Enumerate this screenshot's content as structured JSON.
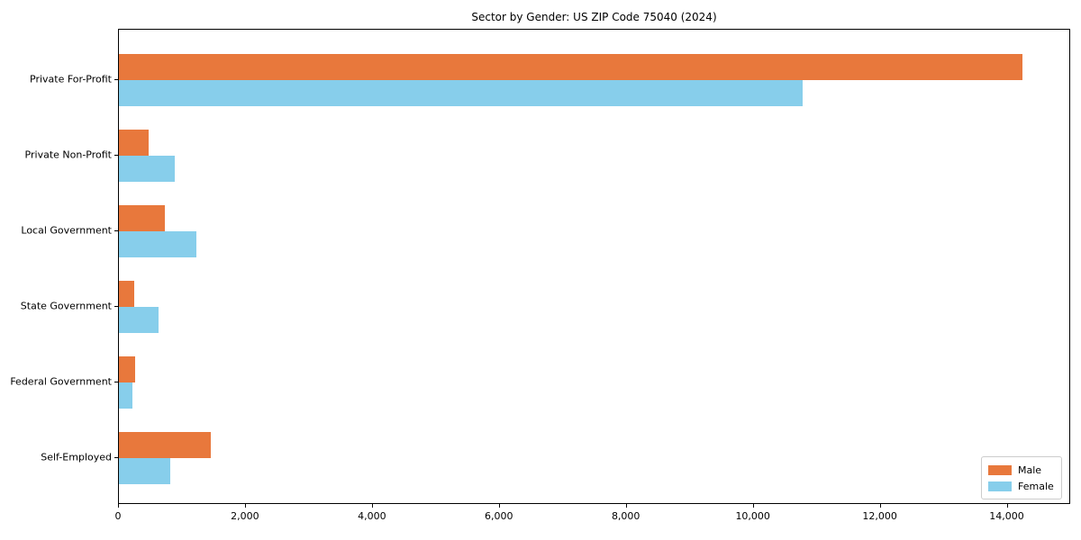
{
  "chart_data": {
    "type": "bar",
    "orientation": "horizontal",
    "title": "Sector by Gender: US ZIP Code 75040 (2024)",
    "categories": [
      "Private For-Profit",
      "Private Non-Profit",
      "Local Government",
      "State Government",
      "Federal Government",
      "Self-Employed"
    ],
    "series": [
      {
        "name": "Male",
        "color": "#e8783c",
        "values": [
          14240,
          470,
          730,
          240,
          260,
          1440
        ]
      },
      {
        "name": "Female",
        "color": "#87ceeb",
        "values": [
          10770,
          880,
          1220,
          620,
          215,
          805
        ]
      }
    ],
    "xlabel": "",
    "ylabel": "",
    "xlim": [
      0,
      15000
    ],
    "xticks": [
      0,
      2000,
      4000,
      6000,
      8000,
      10000,
      12000,
      14000
    ],
    "xtick_labels": [
      "0",
      "2,000",
      "4,000",
      "6,000",
      "8,000",
      "10,000",
      "12,000",
      "14,000"
    ],
    "grid": false,
    "legend_position": "lower right",
    "colors": {
      "male": "#e8783c",
      "female": "#87ceeb",
      "spine": "#000000",
      "background": "#ffffff",
      "legend_border": "#cccccc"
    }
  }
}
